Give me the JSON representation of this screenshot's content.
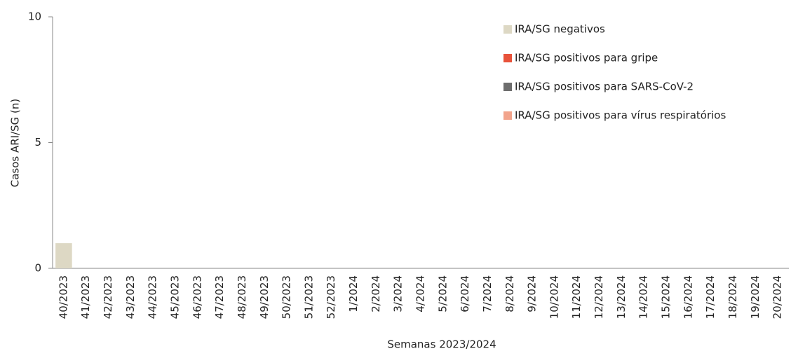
{
  "chart_data": {
    "type": "stacked_bar",
    "y_label": "Casos ARI/SG (n)",
    "x_label": "Semanas 2023/2024",
    "categories": [
      "40/2023",
      "41/2023",
      "42/2023",
      "43/2023",
      "44/2023",
      "45/2023",
      "46/2023",
      "47/2023",
      "48/2023",
      "49/2023",
      "50/2023",
      "51/2023",
      "52/2023",
      "1/2024",
      "2/2024",
      "3/2024",
      "4/2024",
      "5/2024",
      "6/2024",
      "7/2024",
      "8/2024",
      "9/2024",
      "10/2024",
      "11/2024",
      "12/2024",
      "13/2024",
      "14/2024",
      "15/2024",
      "16/2024",
      "17/2024",
      "18/2024",
      "19/2024",
      "20/2024"
    ],
    "series": [
      {
        "name": "IRA/SG negativos",
        "color": "#ddd8c4",
        "values": [
          1,
          0,
          0,
          0,
          0,
          0,
          0,
          0,
          0,
          0,
          0,
          0,
          0,
          0,
          0,
          0,
          0,
          0,
          0,
          0,
          0,
          0,
          0,
          0,
          0,
          0,
          0,
          0,
          0,
          0,
          0,
          0,
          0
        ]
      },
      {
        "name": "IRA/SG positivos para gripe",
        "color": "#e8523a",
        "values": [
          0,
          0,
          0,
          0,
          0,
          0,
          0,
          0,
          0,
          0,
          0,
          0,
          0,
          0,
          0,
          0,
          0,
          0,
          0,
          0,
          0,
          0,
          0,
          0,
          0,
          0,
          0,
          0,
          0,
          0,
          0,
          0,
          0
        ]
      },
      {
        "name": "IRA/SG positivos para SARS-CoV-2",
        "color": "#6d6d6d",
        "values": [
          0,
          0,
          0,
          0,
          0,
          0,
          0,
          0,
          0,
          0,
          0,
          0,
          0,
          0,
          0,
          0,
          0,
          0,
          0,
          0,
          0,
          0,
          0,
          0,
          0,
          0,
          0,
          0,
          0,
          0,
          0,
          0,
          0
        ]
      },
      {
        "name": "IRA/SG positivos para vírus respiratórios",
        "color": "#f2a48c",
        "values": [
          0,
          0,
          0,
          0,
          0,
          0,
          0,
          0,
          0,
          0,
          0,
          0,
          0,
          0,
          0,
          0,
          0,
          0,
          0,
          0,
          0,
          0,
          0,
          0,
          0,
          0,
          0,
          0,
          0,
          0,
          0,
          0,
          0
        ]
      }
    ],
    "ylim": [
      0,
      10
    ],
    "yticks": [
      0,
      5,
      10
    ],
    "grid": false,
    "legend": "top-right"
  }
}
